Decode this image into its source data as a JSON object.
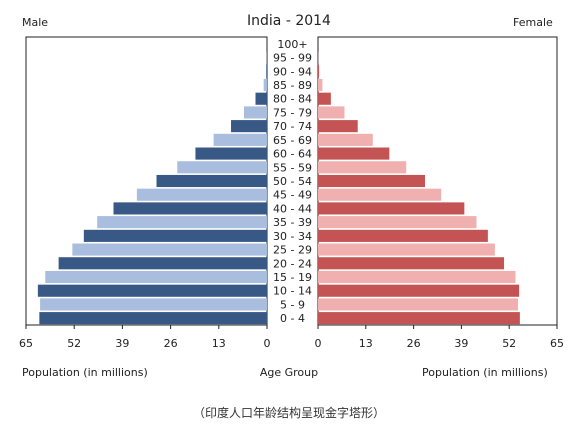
{
  "chart_data": {
    "type": "bar",
    "title": "India - 2014",
    "left_label": "Male",
    "right_label": "Female",
    "xlabel_left": "Population (in millions)",
    "xlabel_center": "Age Group",
    "xlabel_right": "Population (in millions)",
    "caption": "（印度人口年龄结构呈现金字塔形）",
    "xlim": [
      0,
      65
    ],
    "x_ticks_left": [
      "65",
      "52",
      "39",
      "26",
      "13",
      "0"
    ],
    "x_ticks_right": [
      "0",
      "13",
      "26",
      "39",
      "52",
      "65"
    ],
    "categories": [
      "0 - 4",
      "5 - 9",
      "10 - 14",
      "15 - 19",
      "20 - 24",
      "25 - 29",
      "30 - 34",
      "35 - 39",
      "40 - 44",
      "45 - 49",
      "50 - 54",
      "55 - 59",
      "60 - 64",
      "65 - 69",
      "70 - 74",
      "75 - 79",
      "80 - 84",
      "85 - 89",
      "90 - 94",
      "95 - 99",
      "100+"
    ],
    "series": [
      {
        "name": "Male",
        "color_light": "#a9bedf",
        "color_dark": "#385985",
        "values": [
          61.4,
          61.2,
          61.8,
          59.8,
          56.2,
          52.5,
          49.4,
          45.8,
          41.4,
          35.1,
          29.8,
          24.2,
          19.3,
          14.4,
          9.7,
          6.2,
          3.1,
          0.9,
          0.2,
          0.05,
          0.0
        ]
      },
      {
        "name": "Female",
        "color_light": "#f0b0b0",
        "color_dark": "#c45454",
        "values": [
          54.9,
          54.4,
          54.7,
          53.7,
          50.6,
          48.1,
          46.2,
          43.1,
          39.8,
          33.5,
          29.1,
          24.0,
          19.4,
          14.9,
          10.8,
          7.2,
          3.5,
          1.2,
          0.3,
          0.05,
          0.0
        ]
      }
    ]
  }
}
